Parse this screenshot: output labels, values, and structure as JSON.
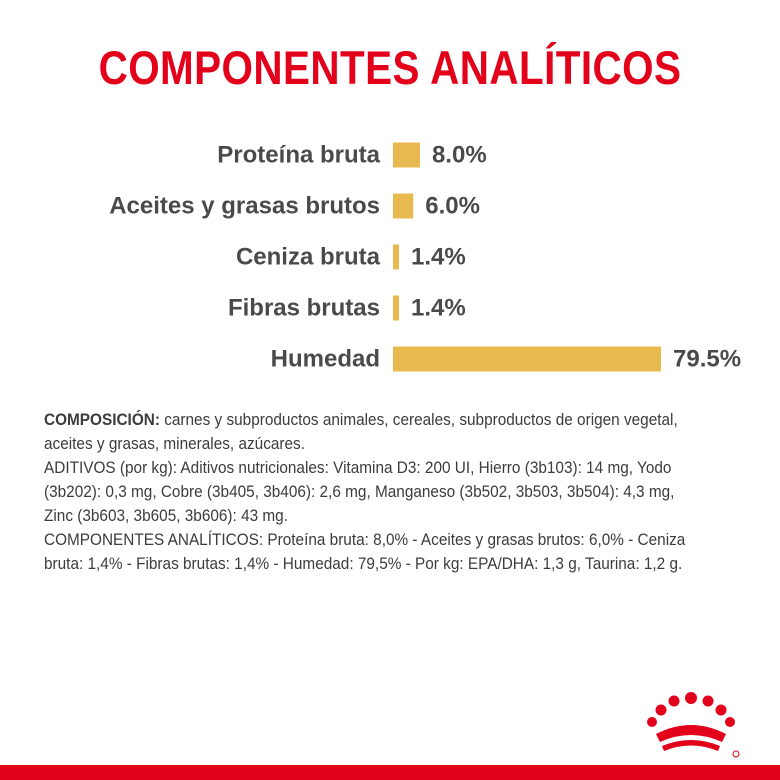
{
  "title": "COMPONENTES ANALÍTICOS",
  "chart_data": {
    "type": "bar",
    "orientation": "horizontal",
    "categories": [
      "Proteína bruta",
      "Aceites y grasas brutos",
      "Ceniza bruta",
      "Fibras brutas",
      "Humedad"
    ],
    "values": [
      8.0,
      6.0,
      1.4,
      1.4,
      79.5
    ],
    "value_labels": [
      "8.0%",
      "6.0%",
      "1.4%",
      "1.4%",
      "79.5%"
    ],
    "bar_color": "#e8b94e",
    "label_color": "#4a4a4a",
    "title": "COMPONENTES ANALÍTICOS",
    "xlabel": "",
    "ylabel": ""
  },
  "composition": {
    "heading": "COMPOSICIÓN:",
    "text": " carnes y subproductos animales, cereales, subproductos de origen vegetal, aceites y grasas, minerales, azúcares.",
    "additives": "ADITIVOS (por kg): Aditivos nutricionales: Vitamina D3: 200 UI, Hierro (3b103): 14 mg, Yodo (3b202): 0,3 mg, Cobre (3b405, 3b406): 2,6 mg, Manganeso (3b502, 3b503, 3b504): 4,3 mg, Zinc (3b603, 3b605, 3b606): 43 mg.",
    "analytical": "COMPONENTES ANALÍTICOS: Proteína bruta: 8,0% - Aceites y grasas brutos: 6,0% - Ceniza bruta: 1,4% - Fibras brutas: 1,4% - Humedad: 79,5% - Por kg: EPA/DHA: 1,3 g, Taurina: 1,2 g."
  },
  "colors": {
    "brand_red": "#e3001b",
    "bar": "#e8b94e",
    "text": "#3c3c3c"
  },
  "logo": {
    "name": "crown-logo-icon"
  }
}
